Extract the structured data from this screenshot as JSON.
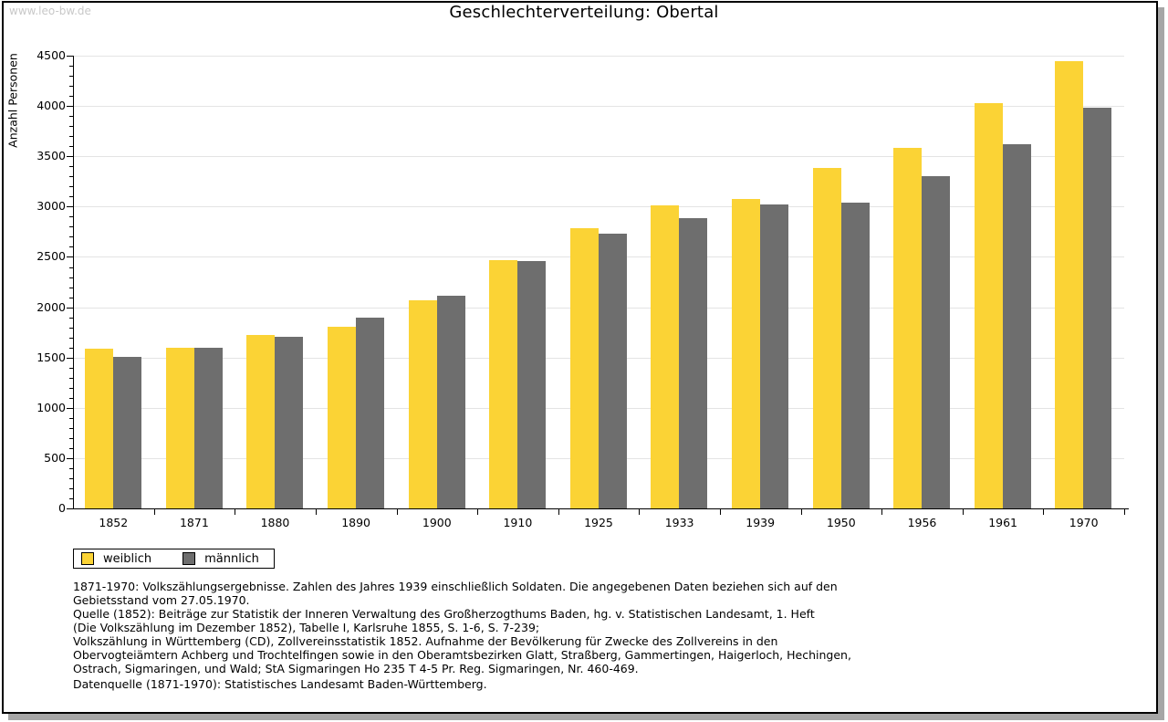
{
  "watermark": "www.leo-bw.de",
  "title": "Geschlechterverteilung: Obertal",
  "chart_data": {
    "type": "bar",
    "title": "Geschlechterverteilung: Obertal",
    "xlabel": "",
    "ylabel": "Anzahl Personen",
    "ylim": [
      0,
      4500
    ],
    "ytick_step": 500,
    "y_minor_tick_step": 100,
    "grid": "horizontal-major",
    "legend_position": "bottom-left",
    "categories": [
      "1852",
      "1871",
      "1880",
      "1890",
      "1900",
      "1910",
      "1925",
      "1933",
      "1939",
      "1950",
      "1956",
      "1961",
      "1970"
    ],
    "series": [
      {
        "name": "weiblich",
        "color": "#fbd335",
        "values": [
          1590,
          1600,
          1725,
          1805,
          2070,
          2465,
          2790,
          3015,
          3080,
          3380,
          3580,
          4030,
          4445
        ]
      },
      {
        "name": "männlich",
        "color": "#6e6e6e",
        "values": [
          1505,
          1595,
          1705,
          1895,
          2110,
          2455,
          2735,
          2890,
          3020,
          3040,
          3305,
          3620,
          3985
        ]
      }
    ]
  },
  "footnotes": {
    "lines": [
      "1871-1970: Volkszählungsergebnisse. Zahlen des Jahres 1939 einschließlich Soldaten. Die angegebenen Daten beziehen sich auf den",
      "Gebietsstand vom 27.05.1970.",
      "Quelle (1852): Beiträge zur Statistik der Inneren Verwaltung des Großherzogthums Baden, hg. v. Statistischen Landesamt, 1. Heft",
      "(Die Volkszählung im Dezember 1852), Tabelle I, Karlsruhe 1855, S. 1-6, S. 7-239;",
      "Volkszählung in Württemberg (CD), Zollvereinsstatistik 1852. Aufnahme der Bevölkerung für Zwecke des Zollvereins in den",
      "Obervogteiämtern Achberg und Trochtelfingen sowie in den Oberamtsbezirken Glatt, Straßberg, Gammertingen, Haigerloch, Hechingen,",
      "Ostrach, Sigmaringen, und Wald; StA Sigmaringen Ho 235 T 4-5 Pr. Reg. Sigmaringen, Nr. 460-469."
    ],
    "datasource": "Datenquelle (1871-1970): Statistisches Landesamt Baden-Württemberg."
  },
  "colors": {
    "grid": "#e4e4e4",
    "axis": "#000000",
    "watermark": "#c8c8c8",
    "frame_shadow": "#a6a6a6"
  }
}
